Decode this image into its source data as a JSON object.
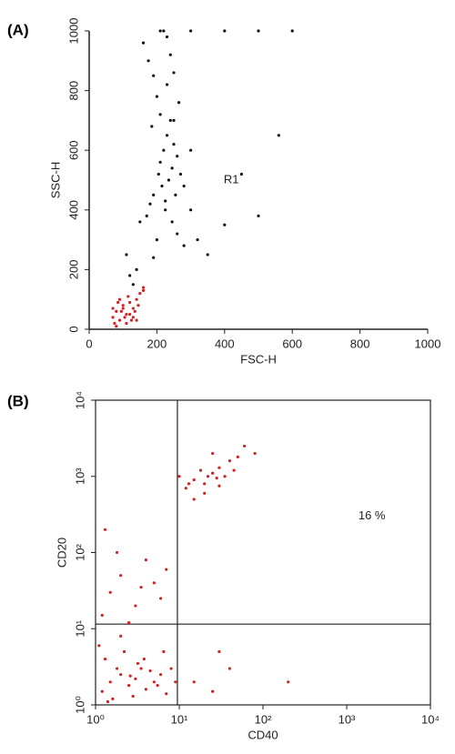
{
  "chart_data": [
    {
      "type": "scatter",
      "title": "(A)",
      "xlabel": "FSC-H",
      "ylabel": "SSC-H",
      "xlim": [
        0,
        1000
      ],
      "ylim": [
        0,
        1000
      ],
      "xticks": [
        0,
        200,
        400,
        600,
        800,
        1000
      ],
      "yticks": [
        0,
        200,
        400,
        600,
        800,
        1000
      ],
      "log_scale": false,
      "annotations": [
        {
          "text": "R1",
          "x": 420,
          "y": 500
        }
      ],
      "series": [
        {
          "color": "#111111",
          "x": [
            150,
            170,
            180,
            190,
            200,
            205,
            210,
            215,
            220,
            225,
            230,
            235,
            240,
            245,
            250,
            255,
            260,
            270,
            280,
            200,
            190,
            175,
            160,
            210,
            220,
            230,
            240,
            250,
            265,
            300,
            320,
            350,
            400,
            450,
            500,
            560,
            140,
            130,
            120,
            110,
            260,
            280,
            190,
            185,
            210,
            225,
            245,
            300,
            230,
            250,
            300,
            400,
            500,
            600
          ],
          "y": [
            360,
            380,
            420,
            450,
            300,
            520,
            560,
            480,
            600,
            430,
            650,
            500,
            700,
            540,
            620,
            450,
            580,
            520,
            480,
            780,
            850,
            900,
            960,
            1000,
            1000,
            980,
            920,
            860,
            760,
            400,
            300,
            250,
            350,
            520,
            380,
            650,
            200,
            150,
            180,
            250,
            320,
            280,
            240,
            680,
            720,
            400,
            360,
            600,
            820,
            700,
            1000,
            1000,
            1000,
            1000
          ]
        },
        {
          "color": "#d42020",
          "x": [
            70,
            80,
            90,
            100,
            110,
            120,
            130,
            140,
            150,
            160,
            75,
            85,
            95,
            105,
            115,
            125,
            135,
            145,
            90,
            100,
            110,
            120,
            80,
            70,
            130,
            160,
            140
          ],
          "y": [
            40,
            60,
            30,
            80,
            50,
            90,
            70,
            100,
            120,
            130,
            20,
            90,
            60,
            40,
            110,
            30,
            60,
            80,
            100,
            70,
            20,
            50,
            10,
            70,
            40,
            140,
            30
          ]
        }
      ]
    },
    {
      "type": "scatter",
      "title": "(B)",
      "xlabel": "CD40",
      "ylabel": "CD20",
      "xlim": [
        1,
        10000
      ],
      "ylim": [
        1,
        10000
      ],
      "log_scale": true,
      "xticks": [
        {
          "value": 1,
          "label": "10⁰"
        },
        {
          "value": 10,
          "label": "10¹"
        },
        {
          "value": 100,
          "label": "10²"
        },
        {
          "value": 1000,
          "label": "10³"
        },
        {
          "value": 10000,
          "label": "10⁴"
        }
      ],
      "yticks": [
        {
          "value": 1,
          "label": "10⁰"
        },
        {
          "value": 10,
          "label": "10¹"
        },
        {
          "value": 100,
          "label": "10²"
        },
        {
          "value": 1000,
          "label": "10³"
        },
        {
          "value": 10000,
          "label": "10⁴"
        }
      ],
      "quadrant": {
        "x": 9.5,
        "y": 11.5
      },
      "annotations": [
        {
          "text": "16 %",
          "x": 2000,
          "y": 300
        }
      ],
      "series": [
        {
          "color": "#d42020",
          "x": [
            1.2,
            1.5,
            1.8,
            2,
            2.5,
            3,
            3.5,
            4,
            5,
            6,
            7,
            8,
            1.3,
            2.2,
            2.8,
            4.5,
            1.1,
            1.6,
            3.2,
            5.5,
            2,
            2.6,
            3.8,
            1.4,
            6.5,
            9,
            15,
            25,
            40,
            1.2,
            1.5,
            2,
            3,
            4,
            5,
            6,
            2.5,
            1.8,
            7,
            3.5,
            1.3,
            12,
            15,
            18,
            20,
            22,
            25,
            28,
            30,
            35,
            40,
            20,
            25,
            30,
            15,
            50,
            60,
            10,
            13,
            45,
            80,
            200,
            30
          ],
          "y": [
            1.5,
            2,
            3,
            2.5,
            1.8,
            2.2,
            3,
            1.6,
            2,
            2.5,
            1.4,
            3,
            4,
            5,
            1.3,
            2.8,
            6,
            1.2,
            3.5,
            1.8,
            8,
            2.4,
            4,
            1.1,
            5,
            2,
            2,
            1.5,
            3,
            15,
            30,
            50,
            20,
            80,
            40,
            25,
            12,
            100,
            60,
            35,
            200,
            700,
            900,
            1200,
            800,
            1000,
            1100,
            950,
            1300,
            1000,
            1600,
            600,
            2000,
            750,
            500,
            1800,
            2500,
            1000,
            800,
            1200,
            2000,
            2,
            5
          ]
        }
      ]
    }
  ]
}
